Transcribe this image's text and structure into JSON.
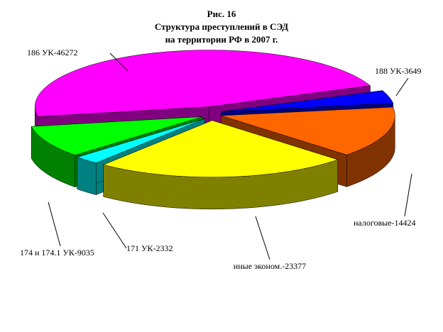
{
  "chart_data": {
    "type": "pie3d",
    "title": [
      "Рис. 16",
      "Структура преступлений в СЭД",
      "на территории РФ в 2007 г."
    ],
    "categories": [
      "186 УК-46272",
      "188 УК-3649",
      "налоговые-14424",
      "иные эконом.-23377",
      "171 УК-2332",
      "174 и 174.1 УК-9035"
    ],
    "values": [
      46272,
      3649,
      14424,
      23377,
      2332,
      9035
    ],
    "colors": [
      "#ff00ff",
      "#0000ff",
      "#ff6600",
      "#ffff00",
      "#00ffff",
      "#00ff00"
    ]
  }
}
